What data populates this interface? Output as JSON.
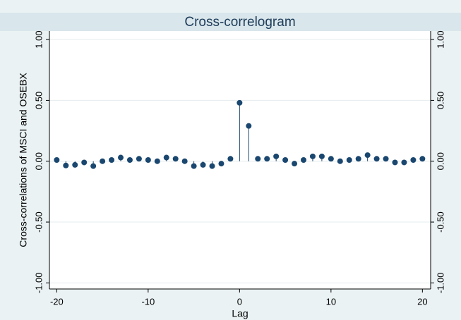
{
  "chart_data": {
    "type": "stem",
    "title": "Cross-correlogram",
    "xlabel": "Lag",
    "ylabel": "Cross-correlations of MSCI and OSEBX",
    "x": [
      -20,
      -19,
      -18,
      -17,
      -16,
      -15,
      -14,
      -13,
      -12,
      -11,
      -10,
      -9,
      -8,
      -7,
      -6,
      -5,
      -4,
      -3,
      -2,
      -1,
      0,
      1,
      2,
      3,
      4,
      5,
      6,
      7,
      8,
      9,
      10,
      11,
      12,
      13,
      14,
      15,
      16,
      17,
      18,
      19,
      20
    ],
    "series": [
      {
        "color": "#1a476f",
        "values": [
          0.01,
          -0.035,
          -0.03,
          -0.01,
          -0.04,
          0.0,
          0.01,
          0.03,
          0.01,
          0.02,
          0.01,
          0.0,
          0.03,
          0.02,
          0.0,
          -0.04,
          -0.03,
          -0.04,
          -0.02,
          0.02,
          0.48,
          0.29,
          0.02,
          0.02,
          0.04,
          0.01,
          -0.02,
          0.01,
          0.04,
          0.04,
          0.02,
          0.0,
          0.01,
          0.02,
          0.05,
          0.02,
          0.02,
          -0.01,
          -0.01,
          0.01,
          0.02
        ]
      }
    ],
    "xlim": [
      -20.8,
      20.9
    ],
    "xticks": [
      -20,
      -10,
      0,
      10,
      20
    ],
    "ylim": [
      -1.05,
      1.07
    ],
    "yticks": [
      {
        "value": -1,
        "label": "-1.00"
      },
      {
        "value": -0.5,
        "label": "-0.50"
      },
      {
        "value": 0,
        "label": "0.00"
      },
      {
        "value": 0.5,
        "label": "0.50"
      },
      {
        "value": 1,
        "label": "1.00"
      }
    ],
    "y2lim": [
      -1.05,
      1.07
    ],
    "y2ticks": [
      {
        "value": -1,
        "label": "-1.00"
      },
      {
        "value": -0.5,
        "label": "-0.50"
      },
      {
        "value": 0,
        "label": "0.00"
      },
      {
        "value": 0.5,
        "label": "0.50"
      },
      {
        "value": 1,
        "label": "1.00"
      }
    ],
    "grid": true
  }
}
